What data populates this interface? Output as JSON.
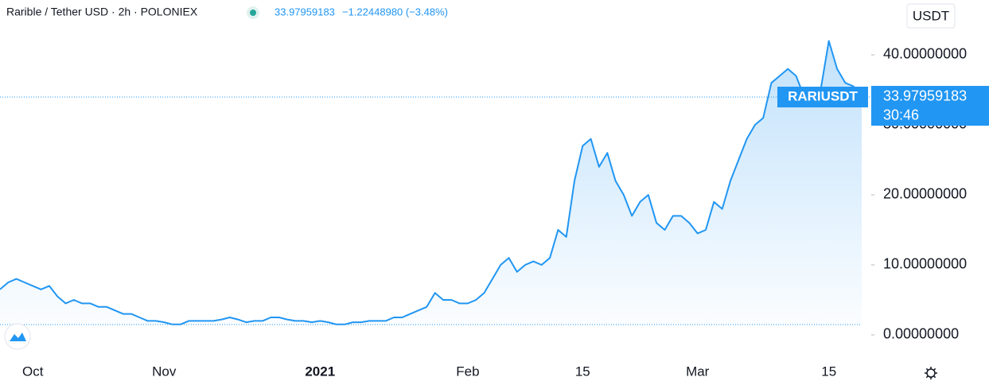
{
  "chart_data": {
    "type": "line",
    "title": "Rarible / Tether USD · 2h · POLONIEX",
    "last_price": 33.97959183,
    "change": "−1.22448980 (−3.48%)",
    "symbol": "RARIUSDT",
    "countdown": "30:46",
    "currency": "USDT",
    "categories": [
      null,
      null,
      null,
      null,
      "Oct",
      null,
      null,
      null,
      null,
      null,
      null,
      null,
      null,
      null,
      null,
      null,
      null,
      null,
      null,
      null,
      "Nov",
      null,
      null,
      null,
      null,
      null,
      null,
      null,
      null,
      null,
      null,
      null,
      null,
      null,
      null,
      null,
      null,
      null,
      null,
      "2021",
      null,
      null,
      null,
      null,
      null,
      null,
      null,
      null,
      null,
      null,
      null,
      null,
      null,
      null,
      null,
      null,
      null,
      "Feb",
      null,
      null,
      null,
      null,
      null,
      null,
      null,
      null,
      null,
      null,
      null,
      null,
      null,
      "15",
      null,
      null,
      null,
      null,
      null,
      null,
      null,
      null,
      null,
      null,
      null,
      null,
      null,
      "Mar",
      null,
      null,
      null,
      null,
      null,
      null,
      null,
      null,
      null,
      null,
      null,
      null,
      null,
      null,
      null,
      "15",
      null,
      null,
      null,
      null
    ],
    "series": [
      {
        "name": "RARIUSDT",
        "color": "#2196f3",
        "values": [
          6.5,
          7.5,
          8,
          7.5,
          7,
          6.5,
          7,
          5.5,
          4.5,
          5,
          4.5,
          4.5,
          4,
          4,
          3.5,
          3,
          3,
          2.5,
          2,
          2,
          1.8,
          1.5,
          1.5,
          2,
          2,
          2,
          2,
          2.2,
          2.5,
          2.2,
          1.8,
          2,
          2,
          2.5,
          2.5,
          2.2,
          2,
          2,
          1.8,
          2,
          1.8,
          1.5,
          1.5,
          1.8,
          1.8,
          2,
          2,
          2,
          2.5,
          2.5,
          3,
          3.5,
          4,
          6,
          5,
          5,
          4.5,
          4.5,
          5,
          6,
          8,
          10,
          11,
          9,
          10,
          10.5,
          10,
          11,
          15,
          14,
          22,
          27,
          28,
          24,
          26,
          22,
          20,
          17,
          19,
          20,
          16,
          15,
          17,
          17,
          16,
          14.5,
          15,
          19,
          18,
          22,
          25,
          28,
          30,
          31,
          36,
          37,
          38,
          37,
          34,
          33,
          35,
          42,
          38,
          36,
          35.5,
          33.97959183
        ]
      }
    ],
    "ylim": [
      -3.07,
      47.84
    ],
    "yticks": [
      {
        "value": 0,
        "label": "0.00000000"
      },
      {
        "value": 10,
        "label": "10.00000000"
      },
      {
        "value": 20,
        "label": "20.00000000"
      },
      {
        "value": 30,
        "label": "30.00000000"
      },
      {
        "value": 40,
        "label": "40.00000000"
      }
    ]
  }
}
